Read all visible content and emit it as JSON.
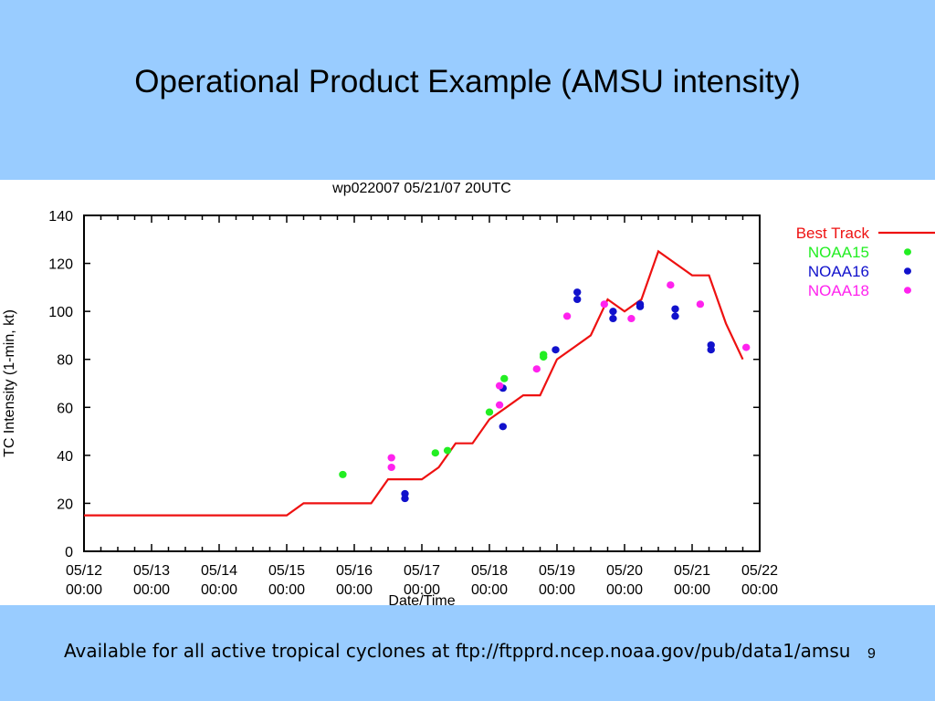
{
  "slide": {
    "title": "Operational Product Example (AMSU intensity)",
    "footer": "Available for all active tropical cyclones at ftp://ftpprd.ncep.noaa.gov/pub/data1/amsu",
    "slide_number": "9",
    "background": "#99CCFF"
  },
  "chart_data": {
    "type": "line",
    "title": "wp022007 05/21/07 20UTC",
    "xlabel": "Date/Time",
    "ylabel": "TC Intensity (1-min, kt)",
    "ylim": [
      0,
      140
    ],
    "yticks": [
      0,
      20,
      40,
      60,
      80,
      100,
      120,
      140
    ],
    "xlim": [
      0,
      10
    ],
    "x_ticks": [
      {
        "date": "05/12",
        "time": "00:00",
        "x": 0
      },
      {
        "date": "05/13",
        "time": "00:00",
        "x": 1
      },
      {
        "date": "05/14",
        "time": "00:00",
        "x": 2
      },
      {
        "date": "05/15",
        "time": "00:00",
        "x": 3
      },
      {
        "date": "05/16",
        "time": "00:00",
        "x": 4
      },
      {
        "date": "05/17",
        "time": "00:00",
        "x": 5
      },
      {
        "date": "05/18",
        "time": "00:00",
        "x": 6
      },
      {
        "date": "05/19",
        "time": "00:00",
        "x": 7
      },
      {
        "date": "05/20",
        "time": "00:00",
        "x": 8
      },
      {
        "date": "05/21",
        "time": "00:00",
        "x": 9
      },
      {
        "date": "05/22",
        "time": "00:00",
        "x": 10
      }
    ],
    "x_unit": "days since 05/12 00:00",
    "legend_position": "right",
    "series": [
      {
        "name": "Best Track",
        "kind": "line",
        "color": "#EE1111",
        "points": [
          [
            0.0,
            15
          ],
          [
            3.0,
            15
          ],
          [
            3.25,
            20
          ],
          [
            4.25,
            20
          ],
          [
            4.5,
            30
          ],
          [
            5.0,
            30
          ],
          [
            5.25,
            35
          ],
          [
            5.5,
            45
          ],
          [
            5.75,
            45
          ],
          [
            6.0,
            55
          ],
          [
            6.25,
            60
          ],
          [
            6.5,
            65
          ],
          [
            6.75,
            65
          ],
          [
            7.0,
            80
          ],
          [
            7.25,
            85
          ],
          [
            7.5,
            90
          ],
          [
            7.75,
            105
          ],
          [
            8.0,
            100
          ],
          [
            8.25,
            105
          ],
          [
            8.5,
            125
          ],
          [
            9.0,
            115
          ],
          [
            9.25,
            115
          ],
          [
            9.5,
            95
          ],
          [
            9.75,
            80
          ]
        ]
      },
      {
        "name": "NOAA15",
        "kind": "points",
        "color": "#22EE22",
        "points": [
          [
            3.83,
            32
          ],
          [
            5.2,
            41
          ],
          [
            5.38,
            42
          ],
          [
            6.0,
            58
          ],
          [
            6.22,
            72
          ],
          [
            6.8,
            81
          ],
          [
            6.8,
            82
          ]
        ]
      },
      {
        "name": "NOAA16",
        "kind": "points",
        "color": "#1111CC",
        "points": [
          [
            4.75,
            24
          ],
          [
            4.75,
            22
          ],
          [
            6.2,
            68
          ],
          [
            6.2,
            52
          ],
          [
            6.98,
            84
          ],
          [
            7.3,
            108
          ],
          [
            7.3,
            105
          ],
          [
            7.83,
            100
          ],
          [
            7.83,
            97
          ],
          [
            8.23,
            103
          ],
          [
            8.23,
            102
          ],
          [
            8.75,
            101
          ],
          [
            8.75,
            98
          ],
          [
            9.28,
            86
          ],
          [
            9.28,
            84
          ]
        ]
      },
      {
        "name": "NOAA18",
        "kind": "points",
        "color": "#FF22EE",
        "points": [
          [
            4.55,
            39
          ],
          [
            4.55,
            35
          ],
          [
            6.15,
            69
          ],
          [
            6.15,
            61
          ],
          [
            6.7,
            76
          ],
          [
            7.15,
            98
          ],
          [
            7.7,
            103
          ],
          [
            8.1,
            97
          ],
          [
            8.68,
            111
          ],
          [
            9.12,
            103
          ],
          [
            9.8,
            85
          ]
        ]
      }
    ]
  }
}
